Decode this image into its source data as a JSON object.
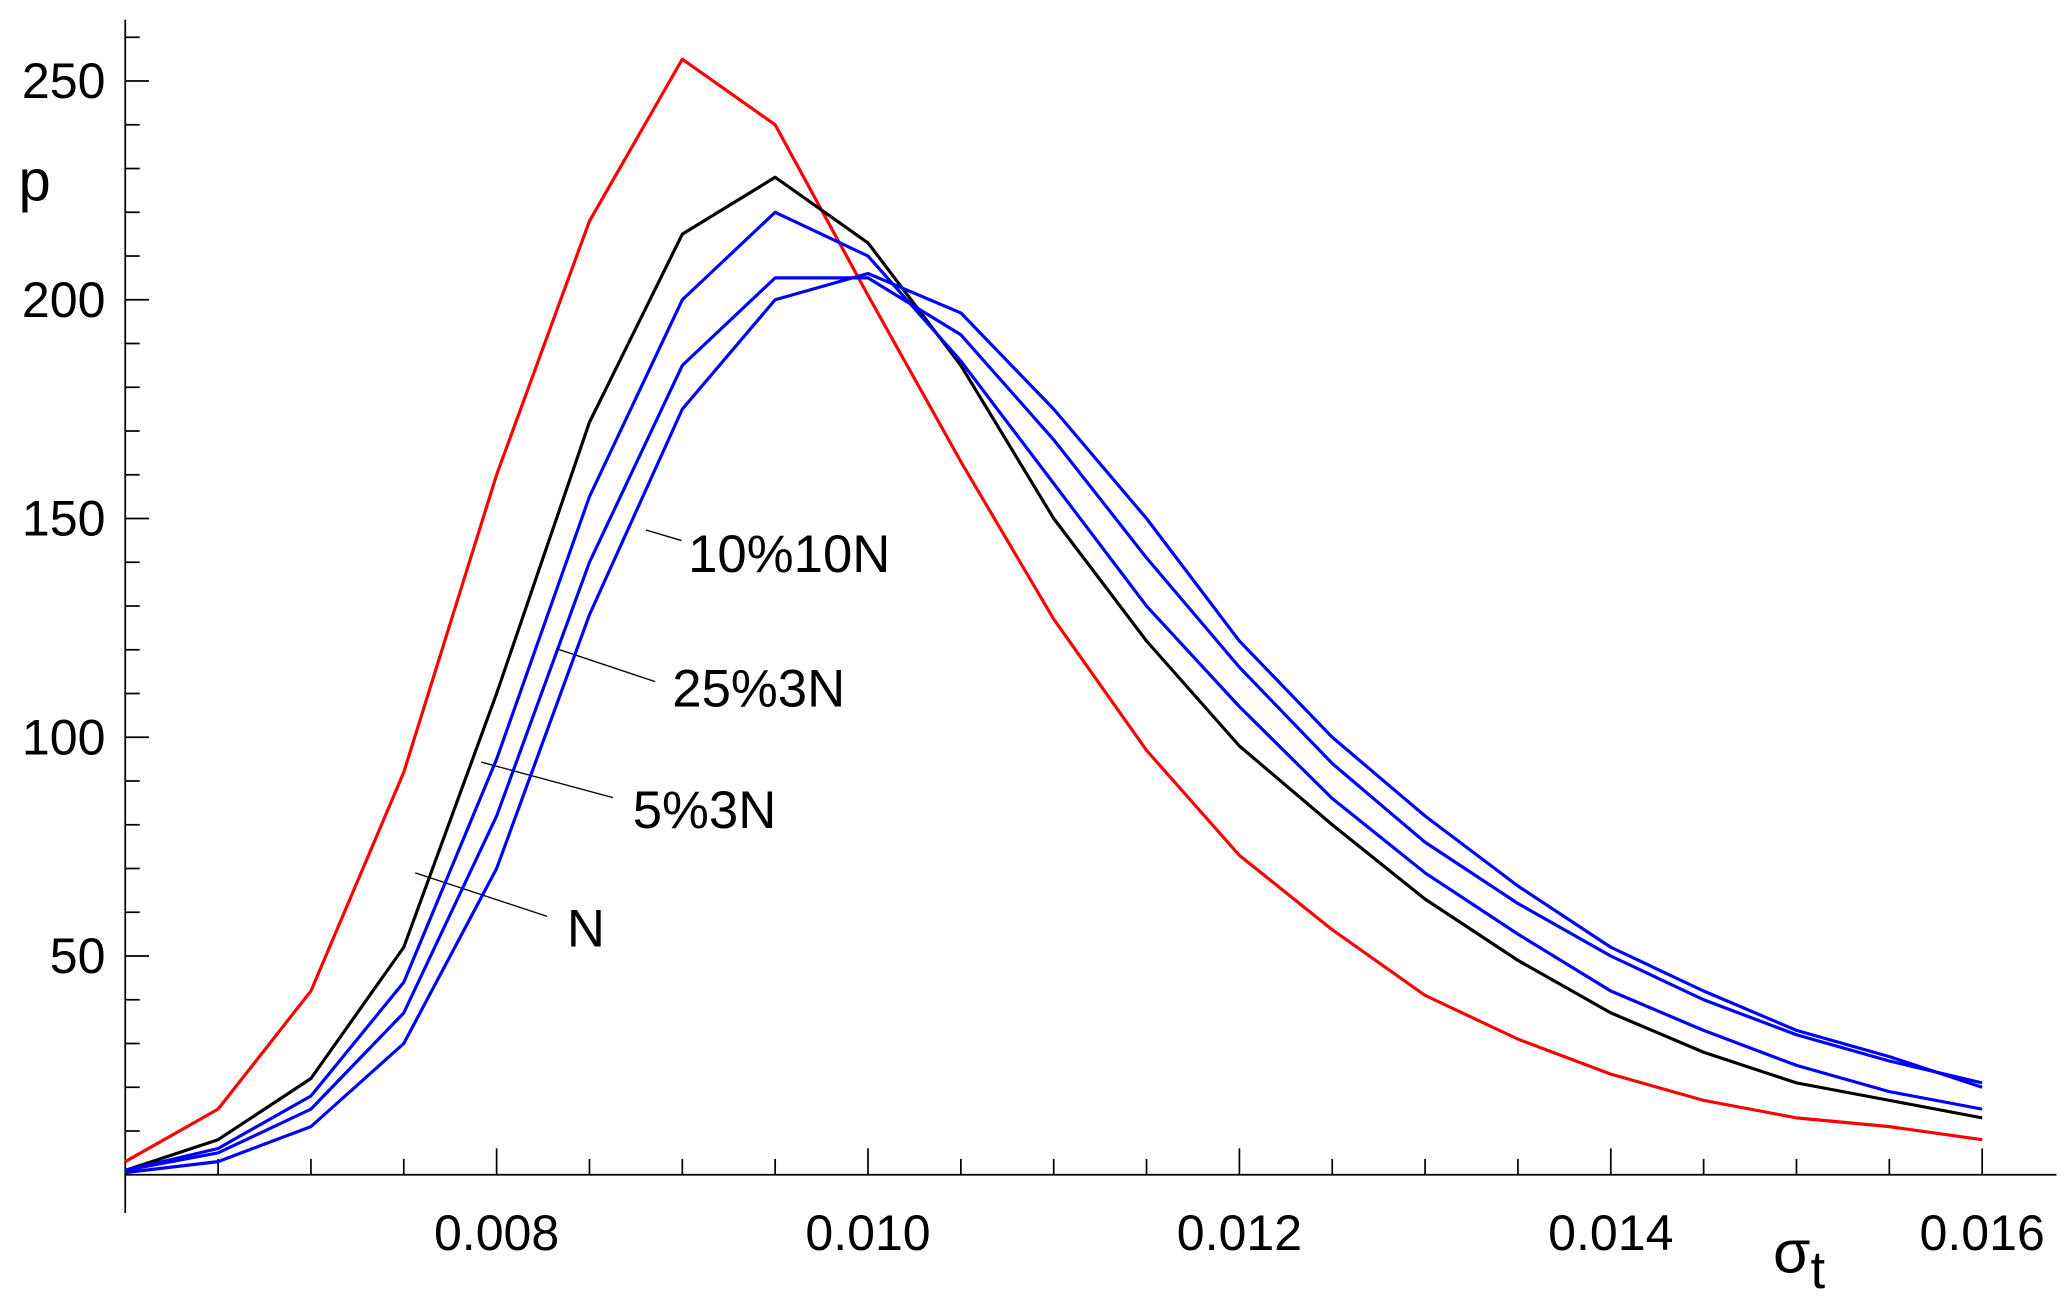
{
  "chart_data": {
    "type": "line",
    "y_label": "p",
    "x_label": {
      "symbol": "σ",
      "subscript": "t"
    },
    "x": [
      0.006,
      0.0065,
      0.007,
      0.0075,
      0.008,
      0.0085,
      0.009,
      0.0095,
      0.01,
      0.0105,
      0.011,
      0.0115,
      0.012,
      0.0125,
      0.013,
      0.0135,
      0.014,
      0.0145,
      0.015,
      0.0155,
      0.016
    ],
    "series": [
      {
        "color": "#ff0000",
        "values": [
          3,
          15,
          42,
          92,
          160,
          218,
          255,
          240,
          201,
          163,
          127,
          97,
          73,
          56,
          41,
          31,
          23,
          17,
          13,
          11,
          8
        ]
      },
      {
        "name": "N",
        "color": "#000000",
        "values": [
          1,
          8,
          22,
          52,
          110,
          172,
          215,
          228,
          213,
          185,
          150,
          122,
          98,
          80,
          63,
          49,
          37,
          28,
          21,
          17,
          13
        ]
      },
      {
        "name": "5%3N",
        "color": "#0000ff",
        "values": [
          1,
          6,
          18,
          44,
          95,
          155,
          200,
          220,
          210,
          186,
          158,
          130,
          107,
          86,
          69,
          55,
          42,
          33,
          25,
          19,
          15
        ]
      },
      {
        "name": "25%3N",
        "color": "#0000ff",
        "values": [
          1,
          5,
          15,
          37,
          82,
          140,
          185,
          205,
          205,
          192,
          168,
          141,
          116,
          94,
          76,
          62,
          50,
          40,
          32,
          26,
          21
        ]
      },
      {
        "name": "10%10N",
        "color": "#0000ff",
        "values": [
          0.5,
          3,
          11,
          30,
          70,
          128,
          175,
          200,
          206,
          197,
          175,
          150,
          122,
          100,
          82,
          66,
          52,
          42,
          33,
          27,
          20
        ]
      }
    ],
    "xlim": [
      0.006,
      0.0164
    ],
    "ylim": [
      0,
      264
    ],
    "xticks": [
      0.008,
      {
        "value": 0.01,
        "label": "0.010"
      },
      0.012,
      0.014,
      0.016
    ],
    "xminorticks": [
      0.0065,
      0.007,
      0.0075,
      0.0085,
      0.009,
      0.0095,
      0.0105,
      0.011,
      0.0115,
      0.0125,
      0.013,
      0.0135,
      0.0145,
      0.015,
      0.0155
    ],
    "yticks": [
      50,
      100,
      150,
      200,
      250
    ],
    "yminorticks": [
      10,
      20,
      30,
      40,
      60,
      70,
      80,
      90,
      110,
      120,
      130,
      140,
      160,
      170,
      180,
      190,
      210,
      220,
      230,
      240,
      260
    ],
    "grid": false
  }
}
